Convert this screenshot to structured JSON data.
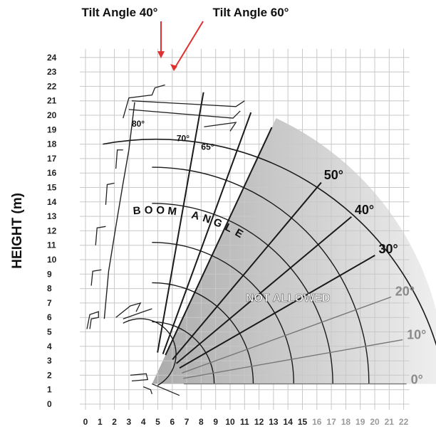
{
  "chart_data": {
    "type": "diagram",
    "ylabel": "HEIGHT (m)",
    "xlabel": "",
    "x_ticks": [
      0,
      1,
      2,
      3,
      4,
      5,
      6,
      7,
      8,
      9,
      10,
      11,
      12,
      13,
      14,
      15,
      16,
      17,
      18,
      19,
      20,
      21,
      22
    ],
    "y_ticks": [
      0,
      1,
      2,
      3,
      4,
      5,
      6,
      7,
      8,
      9,
      10,
      11,
      12,
      13,
      14,
      15,
      16,
      17,
      18,
      19,
      20,
      21,
      22,
      23,
      24
    ],
    "xlim": [
      0,
      22
    ],
    "ylim": [
      0,
      24
    ],
    "pivot": [
      4.6,
      1.4
    ],
    "boom_angles": [
      {
        "label": "80°",
        "angle": 80,
        "reach": 20.5
      },
      {
        "label": "70°",
        "angle": 70,
        "reach": 20.0
      },
      {
        "label": "65°",
        "angle": 65,
        "reach": 19.6
      },
      {
        "label": "50°",
        "angle": 50,
        "reach": 18.2
      },
      {
        "label": "40°",
        "angle": 40,
        "reach": 18.0
      },
      {
        "label": "30°",
        "angle": 30,
        "reach": 17.8
      },
      {
        "label": "20°",
        "angle": 20,
        "reach": 17.6
      },
      {
        "label": "10°",
        "angle": 10,
        "reach": 17.6
      },
      {
        "label": "0°",
        "angle": 0,
        "reach": 17.6
      }
    ],
    "extension_radii": [
      4.3,
      7.0,
      9.8,
      12.5,
      15.0
    ],
    "outer_radius": 20.3,
    "region_label": "NOT ALLOWED",
    "arc_label": "BOOM ANGLE",
    "callouts": [
      "Tilt Angle 40°",
      "Tilt Angle 60°"
    ],
    "colors": {
      "grid": "#c8c8c8",
      "line": "#1a1a1a",
      "callout_arrow": "#e03030",
      "shade_dark": "#a8a8a8",
      "shade_light": "#e6e6e6"
    }
  }
}
